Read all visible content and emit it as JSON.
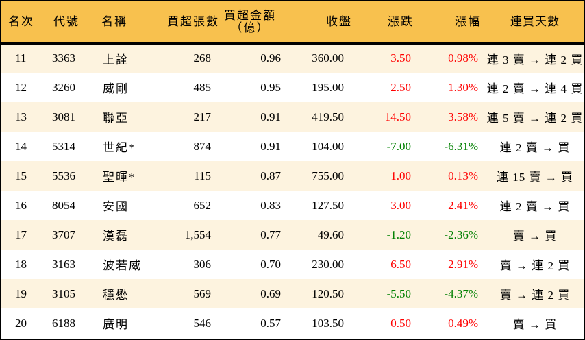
{
  "colors": {
    "header_bg": "#f8c14e",
    "row_odd_bg": "#fdf3df",
    "row_even_bg": "#ffffff",
    "up": "#ff0000",
    "down": "#008000",
    "border": "#000000"
  },
  "header": {
    "rank": "名次",
    "code": "代號",
    "name": "名稱",
    "net_buy_lots": "買超張數",
    "net_buy_amount_line1": "買超金額",
    "net_buy_amount_line2": "（億）",
    "close": "收盤",
    "change": "漲跌",
    "change_pct": "漲幅",
    "consecutive_days": "連買天數"
  },
  "rows": [
    {
      "rank": "11",
      "code": "3363",
      "name": "上詮",
      "lots": "268",
      "amount": "0.96",
      "close": "360.00",
      "change": "3.50",
      "pct": "0.98%",
      "dir": "up",
      "streak": "連 3 賣 → 連 2 買"
    },
    {
      "rank": "12",
      "code": "3260",
      "name": "威剛",
      "lots": "485",
      "amount": "0.95",
      "close": "195.00",
      "change": "2.50",
      "pct": "1.30%",
      "dir": "up",
      "streak": "連 2 賣 → 連 4 買"
    },
    {
      "rank": "13",
      "code": "3081",
      "name": "聯亞",
      "lots": "217",
      "amount": "0.91",
      "close": "419.50",
      "change": "14.50",
      "pct": "3.58%",
      "dir": "up",
      "streak": "連 5 賣 → 連 2 買"
    },
    {
      "rank": "14",
      "code": "5314",
      "name": "世紀*",
      "lots": "874",
      "amount": "0.91",
      "close": "104.00",
      "change": "-7.00",
      "pct": "-6.31%",
      "dir": "down",
      "streak": "連 2 賣 → 買"
    },
    {
      "rank": "15",
      "code": "5536",
      "name": "聖暉*",
      "lots": "115",
      "amount": "0.87",
      "close": "755.00",
      "change": "1.00",
      "pct": "0.13%",
      "dir": "up",
      "streak": "連 15 賣 → 買"
    },
    {
      "rank": "16",
      "code": "8054",
      "name": "安國",
      "lots": "652",
      "amount": "0.83",
      "close": "127.50",
      "change": "3.00",
      "pct": "2.41%",
      "dir": "up",
      "streak": "連 2 賣 → 買"
    },
    {
      "rank": "17",
      "code": "3707",
      "name": "漢磊",
      "lots": "1,554",
      "amount": "0.77",
      "close": "49.60",
      "change": "-1.20",
      "pct": "-2.36%",
      "dir": "down",
      "streak": "賣 → 買"
    },
    {
      "rank": "18",
      "code": "3163",
      "name": "波若威",
      "lots": "306",
      "amount": "0.70",
      "close": "230.00",
      "change": "6.50",
      "pct": "2.91%",
      "dir": "up",
      "streak": "賣 → 連 2 買"
    },
    {
      "rank": "19",
      "code": "3105",
      "name": "穩懋",
      "lots": "569",
      "amount": "0.69",
      "close": "120.50",
      "change": "-5.50",
      "pct": "-4.37%",
      "dir": "down",
      "streak": "賣 → 連 2 買"
    },
    {
      "rank": "20",
      "code": "6188",
      "name": "廣明",
      "lots": "546",
      "amount": "0.57",
      "close": "103.50",
      "change": "0.50",
      "pct": "0.49%",
      "dir": "up",
      "streak": "賣 → 買"
    }
  ]
}
